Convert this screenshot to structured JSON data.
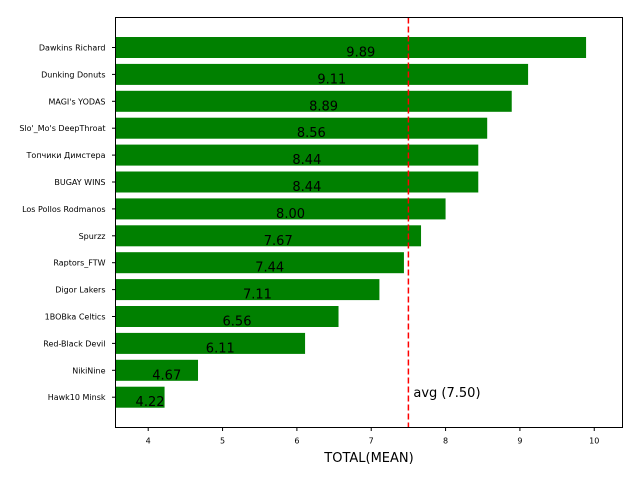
{
  "chart_data": {
    "type": "bar",
    "orientation": "horizontal",
    "xlabel": "TOTAL(MEAN)",
    "ylabel": "",
    "title": "",
    "xlim": [
      3.56,
      10.38
    ],
    "xticks": [
      "4",
      "5",
      "6",
      "7",
      "8",
      "9",
      "10"
    ],
    "categories": [
      "Dawkins Richard",
      "Dunking Donuts",
      "MAGI's YODAS",
      "Slo'_Mo's DeepThroat",
      "Топчики Димстера",
      "BUGAY WINS",
      "Los Pollos Rodmanos",
      "Spurzz",
      "Raptors_FTW",
      "Digor Lakers",
      "1BOBka Celtics",
      "Red-Black Devil",
      "NikiNine",
      "Hawk10 Minsk"
    ],
    "values": [
      9.89,
      9.11,
      8.89,
      8.56,
      8.44,
      8.44,
      8.0,
      7.67,
      7.44,
      7.11,
      6.56,
      6.11,
      4.67,
      4.22
    ],
    "value_labels": [
      "9.89",
      "9.11",
      "8.89",
      "8.56",
      "8.44",
      "8.44",
      "8.00",
      "7.67",
      "7.44",
      "7.11",
      "6.56",
      "6.11",
      "4.67",
      "4.22"
    ],
    "bar_color": "#008000",
    "average": {
      "value": 7.5,
      "label": "avg (7.50)",
      "color": "#ff0000",
      "style": "dashed"
    },
    "grid": false,
    "legend": "none"
  }
}
